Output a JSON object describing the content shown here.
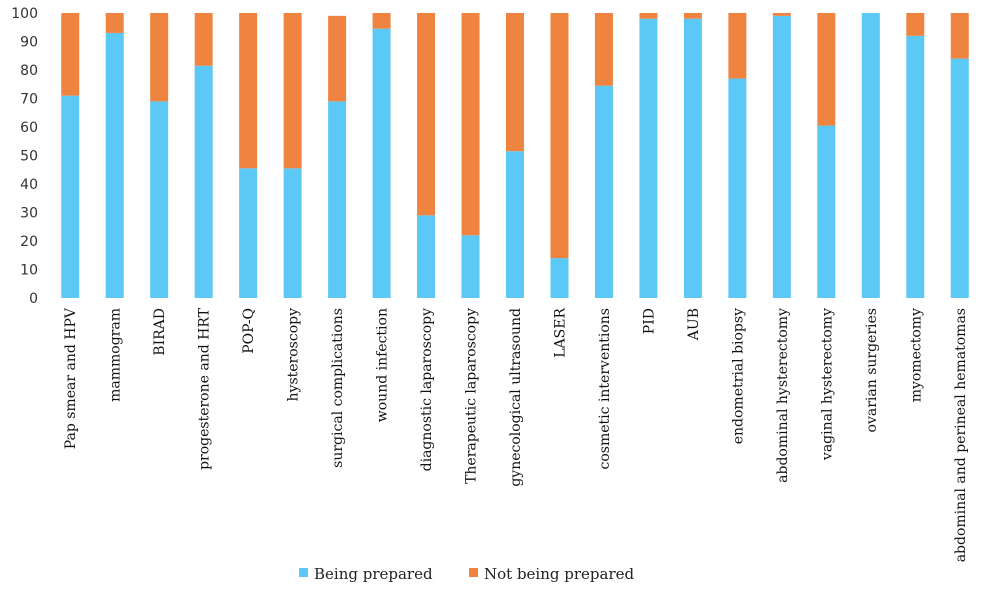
{
  "chart_data": {
    "type": "bar",
    "stacked": true,
    "ylim": [
      0,
      100
    ],
    "yticks": [
      0,
      10,
      20,
      30,
      40,
      50,
      60,
      70,
      80,
      90,
      100
    ],
    "grid": false,
    "legend_position": "bottom",
    "categories": [
      "Pap smear and HPV",
      "mammogram",
      "BIRAD",
      "progesterone and HRT",
      "POP-Q",
      "hysteroscopy",
      "surgical complications",
      "wound infection",
      "diagnostic laparoscopy",
      "Therapeutic laparoscopy",
      "gynecological ultrasound",
      "LASER",
      "cosmetic interventions",
      "PID",
      "AUB",
      "endometrial biopsy",
      "abdominal hysterectomy",
      "vaginal hysterectomy",
      "ovarian surgeries",
      "myomectomy",
      "abdominal and perineal hematomas"
    ],
    "series": [
      {
        "name": "Being prepared",
        "color": "#5cc8f5",
        "values": [
          71,
          93,
          69,
          81.5,
          45.5,
          45.5,
          69,
          94.5,
          29,
          22,
          51.5,
          14,
          74.5,
          98,
          98,
          77,
          99,
          60.5,
          100,
          92,
          84
        ]
      },
      {
        "name": "Not being prepared",
        "color": "#ef8441",
        "values": [
          29,
          7,
          31,
          18.5,
          54.5,
          54.5,
          30,
          5.5,
          71,
          78,
          48.5,
          86,
          25.5,
          2,
          2,
          23,
          1,
          39.5,
          0,
          8,
          16
        ]
      }
    ]
  }
}
